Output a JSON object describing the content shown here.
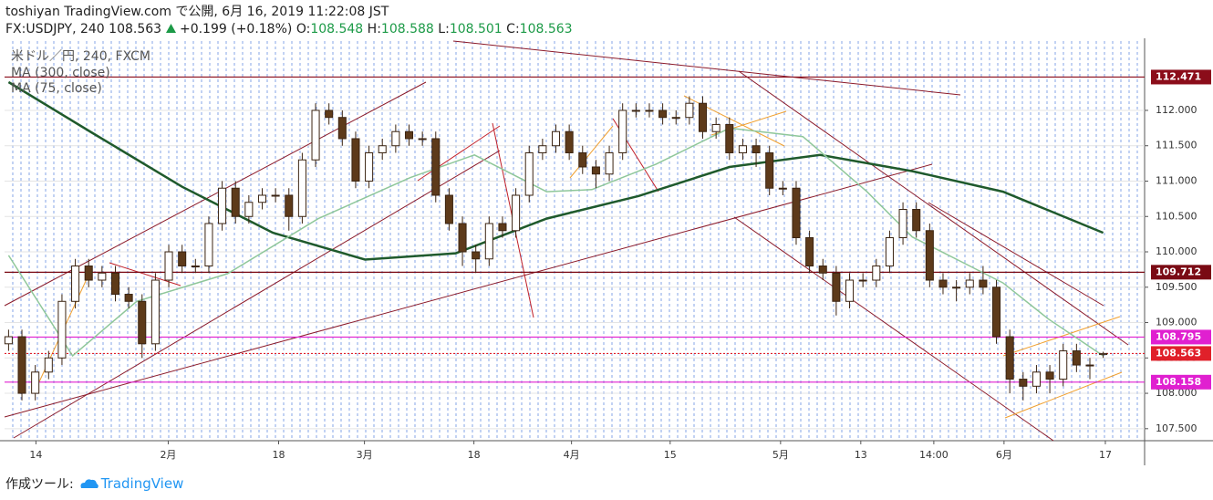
{
  "header": {
    "title": "toshiyan TradingView.com で公開, 6月 16, 2019 11:22:08 JST",
    "symbol": "FX:USDJPY, 240 108.563",
    "change": "+0.199 (+0.18%)",
    "ohlc": [
      {
        "label": "O:",
        "value": "108.548"
      },
      {
        "label": "H:",
        "value": "108.588"
      },
      {
        "label": "L:",
        "value": "108.501"
      },
      {
        "label": "C:",
        "value": "108.563"
      }
    ]
  },
  "chart_data": {
    "type": "candlestick",
    "label": "米ドル／円, 240, FXCM",
    "up_color": "#ffffff",
    "down_color": "#5d3a1a",
    "wick_color": "#3b2412",
    "open": [
      108.7,
      108.8,
      108.0,
      108.3,
      108.5,
      109.3,
      109.8,
      109.6,
      109.7,
      109.4,
      109.3,
      108.7,
      109.6,
      110.0,
      109.8,
      109.8,
      110.4,
      110.9,
      110.5,
      110.7,
      110.8,
      110.8,
      110.5,
      111.3,
      112.0,
      111.9,
      111.6,
      111.0,
      111.4,
      111.5,
      111.7,
      111.6,
      111.6,
      110.8,
      110.4,
      110.0,
      109.9,
      110.4,
      110.3,
      110.8,
      111.4,
      111.5,
      111.7,
      111.4,
      111.2,
      111.1,
      111.4,
      112.0,
      112.0,
      112.0,
      111.9,
      111.9,
      112.1,
      111.7,
      111.8,
      111.4,
      111.5,
      111.4,
      110.9,
      110.9,
      110.2,
      109.8,
      109.7,
      109.3,
      109.6,
      109.6,
      109.8,
      110.2,
      110.6,
      110.3,
      109.6,
      109.5,
      109.5,
      109.6,
      109.5,
      108.8,
      108.2,
      108.1,
      108.3,
      108.2,
      108.6,
      108.4,
      108.548
    ],
    "high": [
      108.9,
      108.9,
      108.4,
      108.6,
      109.4,
      109.9,
      109.9,
      109.8,
      109.8,
      109.5,
      109.4,
      109.7,
      110.1,
      110.1,
      109.9,
      110.5,
      111.0,
      111.0,
      110.8,
      110.9,
      110.9,
      110.9,
      111.4,
      112.1,
      112.1,
      112.0,
      111.7,
      111.5,
      111.6,
      111.8,
      111.8,
      111.7,
      111.7,
      110.9,
      110.5,
      110.1,
      110.5,
      110.5,
      110.9,
      111.5,
      111.6,
      111.8,
      111.8,
      111.5,
      111.3,
      111.5,
      112.1,
      112.1,
      112.1,
      112.1,
      112.0,
      112.2,
      112.2,
      111.9,
      111.9,
      111.6,
      111.6,
      111.5,
      111.0,
      111.0,
      110.3,
      109.9,
      109.8,
      109.7,
      109.7,
      109.9,
      110.3,
      110.7,
      110.7,
      110.4,
      109.7,
      109.6,
      109.7,
      109.8,
      109.6,
      108.9,
      108.3,
      108.4,
      108.4,
      108.7,
      108.7,
      108.5,
      108.588
    ],
    "low": [
      108.6,
      107.9,
      107.9,
      108.2,
      108.4,
      109.2,
      109.5,
      109.5,
      109.3,
      109.2,
      108.5,
      108.6,
      109.5,
      109.7,
      109.7,
      109.7,
      110.3,
      110.4,
      110.4,
      110.6,
      110.7,
      110.3,
      110.4,
      111.2,
      111.8,
      111.5,
      110.9,
      110.9,
      111.3,
      111.4,
      111.5,
      111.5,
      110.7,
      110.3,
      109.8,
      109.7,
      109.8,
      110.2,
      110.2,
      110.7,
      111.3,
      111.4,
      111.3,
      111.1,
      110.9,
      111.0,
      111.3,
      111.9,
      111.9,
      111.8,
      111.8,
      111.8,
      111.6,
      111.6,
      111.3,
      111.3,
      111.2,
      110.8,
      110.8,
      110.1,
      109.7,
      109.6,
      109.1,
      109.2,
      109.5,
      109.5,
      109.7,
      110.1,
      110.2,
      109.5,
      109.4,
      109.3,
      109.4,
      109.4,
      108.7,
      108.0,
      107.9,
      108.0,
      108.0,
      108.1,
      108.3,
      108.2,
      108.501
    ],
    "close": [
      108.8,
      108.0,
      108.3,
      108.5,
      109.3,
      109.8,
      109.6,
      109.7,
      109.4,
      109.3,
      108.7,
      109.6,
      110.0,
      109.8,
      109.8,
      110.4,
      110.9,
      110.5,
      110.7,
      110.8,
      110.8,
      110.5,
      111.3,
      112.0,
      111.9,
      111.6,
      111.0,
      111.4,
      111.5,
      111.7,
      111.6,
      111.6,
      110.8,
      110.4,
      110.0,
      109.9,
      110.4,
      110.3,
      110.8,
      111.4,
      111.5,
      111.7,
      111.4,
      111.2,
      111.1,
      111.4,
      112.0,
      112.0,
      112.0,
      111.9,
      111.9,
      112.1,
      111.7,
      111.8,
      111.4,
      111.5,
      111.4,
      110.9,
      110.9,
      110.2,
      109.8,
      109.7,
      109.3,
      109.6,
      109.6,
      109.8,
      110.2,
      110.6,
      110.3,
      109.6,
      109.5,
      109.5,
      109.6,
      109.5,
      108.8,
      108.2,
      108.1,
      108.3,
      108.2,
      108.6,
      108.4,
      108.4,
      108.563
    ],
    "series": [
      {
        "name": "MA (300, close)",
        "color": "#1f5a2c",
        "width": 2.5,
        "x": [
          0,
          6.2,
          13,
          19.8,
          26.7,
          33.5,
          40.3,
          47.2,
          54,
          60.8,
          67.7,
          74.5,
          82
        ],
        "values": [
          112.4,
          111.69,
          110.92,
          110.27,
          109.89,
          109.98,
          110.47,
          110.79,
          111.2,
          111.37,
          111.14,
          110.85,
          110.27
        ]
      },
      {
        "name": "MA (75, close)",
        "color": "#8fc79a",
        "width": 1.5,
        "x": [
          0,
          4.8,
          9.6,
          16.4,
          23.2,
          30.1,
          34.9,
          40.3,
          43.7,
          48.5,
          54,
          59.5,
          64.3,
          67.7,
          71.8,
          74.5,
          77.9,
          82
        ],
        "values": [
          109.95,
          108.53,
          109.3,
          109.69,
          110.47,
          111.05,
          111.37,
          110.85,
          110.88,
          111.24,
          111.75,
          111.63,
          110.85,
          110.21,
          109.82,
          109.56,
          109.05,
          108.53
        ]
      }
    ],
    "levels": [
      {
        "value": 112.471,
        "label": "112.471",
        "color": "#8b0d1a",
        "line_style": "solid"
      },
      {
        "value": 109.712,
        "label": "109.712",
        "color": "#7a0a14",
        "line_style": "solid"
      },
      {
        "value": 108.795,
        "label": "108.795",
        "color": "#e020d0",
        "line_style": "solid"
      },
      {
        "value": 108.563,
        "label": "108.563",
        "color": "#e0202a",
        "line_style": "dotted"
      },
      {
        "value": 108.158,
        "label": "108.158",
        "color": "#e020d0",
        "line_style": "solid"
      }
    ],
    "xlim": [
      -0.3,
      85.1
    ],
    "ylim": [
      107.33,
      112.98
    ],
    "xticks": [
      {
        "value": 2.05,
        "label": "14"
      },
      {
        "value": 11.96,
        "label": "2月"
      },
      {
        "value": 20.23,
        "label": "18"
      },
      {
        "value": 26.66,
        "label": "3月"
      },
      {
        "value": 34.86,
        "label": "18"
      },
      {
        "value": 42.17,
        "label": "4月"
      },
      {
        "value": 49.56,
        "label": "15"
      },
      {
        "value": 57.83,
        "label": "5月"
      },
      {
        "value": 63.84,
        "label": "13"
      },
      {
        "value": 69.31,
        "label": "14:00"
      },
      {
        "value": 74.57,
        "label": "6月"
      },
      {
        "value": 82.16,
        "label": "17"
      }
    ],
    "yticks": [
      {
        "value": 107.5,
        "label": "107.500"
      },
      {
        "value": 108,
        "label": "108.000"
      },
      {
        "value": 108.5,
        "label": "108.500"
      },
      {
        "value": 109,
        "label": "109.000"
      },
      {
        "value": 109.5,
        "label": "109.500"
      },
      {
        "value": 110,
        "label": "110.000"
      },
      {
        "value": 110.5,
        "label": "110.500"
      },
      {
        "value": 111,
        "label": "111.000"
      },
      {
        "value": 111.5,
        "label": "111.500"
      },
      {
        "value": 112,
        "label": "112.000"
      }
    ],
    "grid": true
  },
  "footer": {
    "made_with": "作成ツール:",
    "brand": "TradingView"
  }
}
